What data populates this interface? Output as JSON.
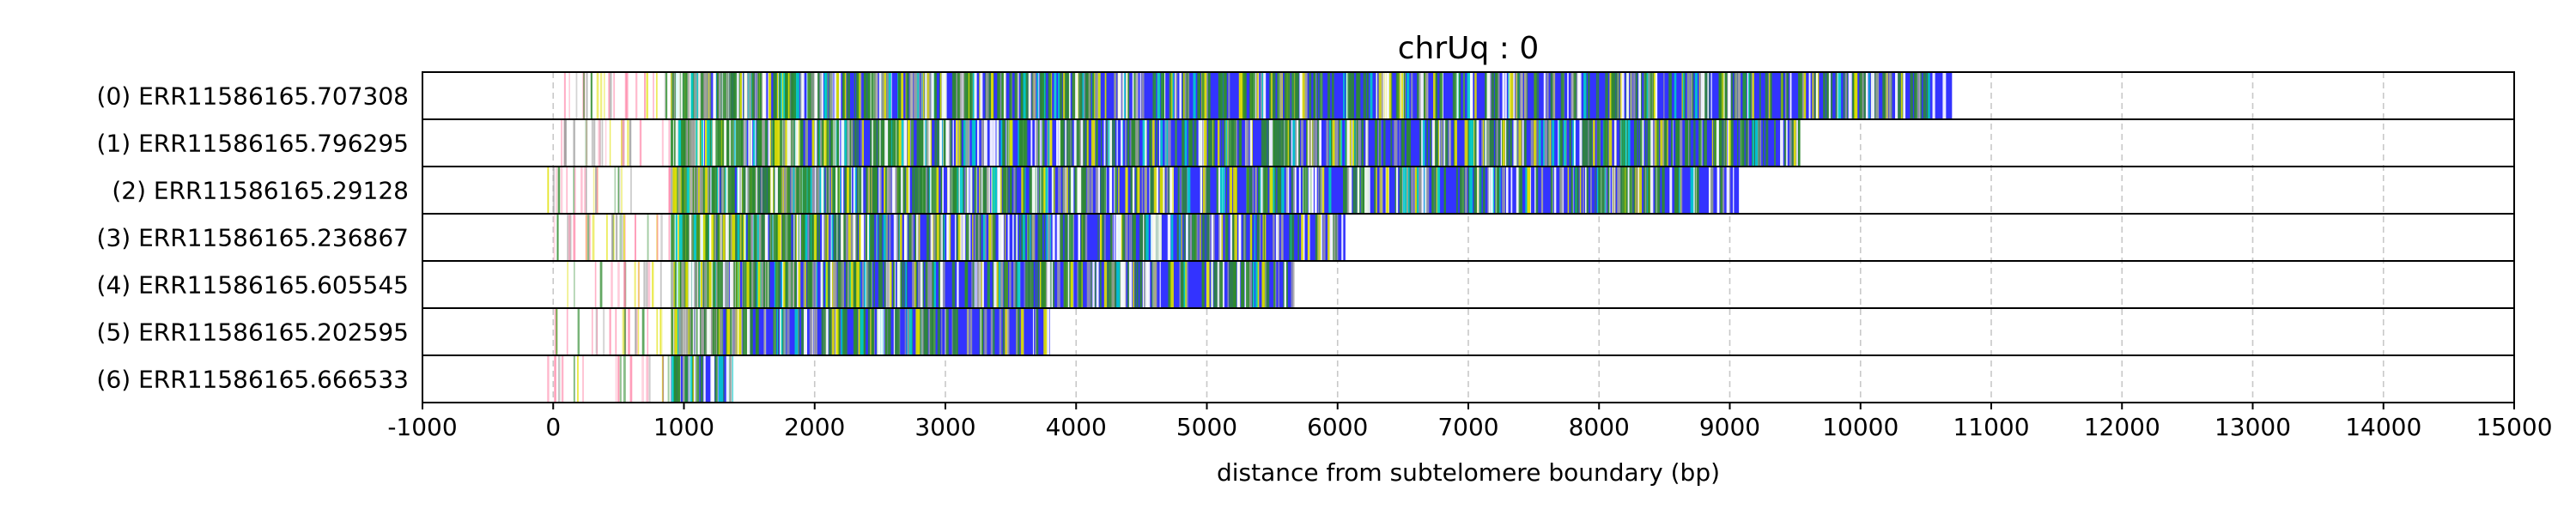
{
  "chart_data": {
    "type": "bar",
    "title": "chrUq : 0",
    "xlabel": "distance from subtelomere boundary (bp)",
    "ylabel": "",
    "xlim": [
      -1000,
      15000
    ],
    "xticks": [
      -1000,
      0,
      1000,
      2000,
      3000,
      4000,
      5000,
      6000,
      7000,
      8000,
      9000,
      10000,
      11000,
      12000,
      13000,
      14000,
      15000
    ],
    "xtick_labels": [
      "-1000",
      "0",
      "1000",
      "2000",
      "3000",
      "4000",
      "5000",
      "6000",
      "7000",
      "8000",
      "9000",
      "10000",
      "11000",
      "12000",
      "13000",
      "14000",
      "15000"
    ],
    "grid": "vertical dashed",
    "categories": [
      "(0) ERR11586165.707308",
      "(1) ERR11586165.796295",
      "(2) ERR11586165.29128",
      "(3) ERR11586165.236867",
      "(4) ERR11586165.605545",
      "(5) ERR11586165.202595",
      "(6) ERR11586165.666533"
    ],
    "reads": [
      {
        "label": "(0) ERR11586165.707308",
        "start": 900,
        "end": 10700
      },
      {
        "label": "(1) ERR11586165.796295",
        "start": 900,
        "end": 9530
      },
      {
        "label": "(2) ERR11586165.29128",
        "start": 900,
        "end": 9070
      },
      {
        "label": "(3) ERR11586165.236867",
        "start": 900,
        "end": 6060
      },
      {
        "label": "(4) ERR11586165.605545",
        "start": 900,
        "end": 5660
      },
      {
        "label": "(5) ERR11586165.202595",
        "start": 900,
        "end": 3800
      },
      {
        "label": "(6) ERR11586165.666533",
        "start": 900,
        "end": 1360
      }
    ],
    "colors": {
      "main": "#3333ff",
      "green": "#2e8b2e",
      "yellow": "#e0e000",
      "grey": "#a0a0a0",
      "cyan": "#00cccc",
      "pink": "#ff88aa",
      "white": "#ffffff"
    }
  }
}
